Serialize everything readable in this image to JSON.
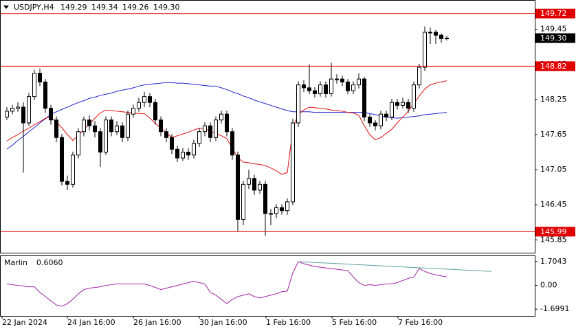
{
  "chart_data": {
    "type": "candlestick",
    "symbol": "USDJPY,H4",
    "last_labels": [
      "149.29",
      "149.34",
      "149.26",
      "149.30"
    ],
    "xticks": [
      "22 Jan 2024",
      "24 Jan 16:00",
      "26 Jan 16:00",
      "30 Jan 16:00",
      "1 Feb 16:00",
      "5 Feb 16:00",
      "7 Feb 16:00"
    ],
    "ylim": [
      145.63,
      149.94
    ],
    "yticks": [
      145.85,
      146.45,
      147.05,
      147.65,
      148.25,
      148.85,
      149.45
    ],
    "levels": [
      149.72,
      148.82,
      145.99
    ],
    "level_color": "#e00000",
    "candles": [
      [
        147.95,
        148.12,
        147.9,
        148.05
      ],
      [
        148.05,
        148.16,
        148.0,
        148.1
      ],
      [
        148.1,
        148.2,
        148.04,
        148.12
      ],
      [
        148.12,
        148.2,
        147.0,
        147.85
      ],
      [
        147.85,
        148.36,
        147.8,
        148.3
      ],
      [
        148.3,
        148.76,
        148.24,
        148.7
      ],
      [
        148.7,
        148.78,
        148.48,
        148.55
      ],
      [
        148.55,
        148.6,
        148.02,
        148.1
      ],
      [
        148.1,
        148.16,
        147.82,
        147.9
      ],
      [
        147.9,
        147.96,
        147.52,
        147.6
      ],
      [
        147.6,
        147.66,
        146.78,
        146.85
      ],
      [
        146.85,
        146.95,
        146.7,
        146.8
      ],
      [
        146.8,
        147.36,
        146.74,
        147.3
      ],
      [
        147.3,
        147.76,
        147.24,
        147.7
      ],
      [
        147.7,
        147.96,
        147.62,
        147.9
      ],
      [
        147.9,
        147.98,
        147.72,
        147.8
      ],
      [
        147.8,
        147.88,
        147.6,
        147.7
      ],
      [
        147.7,
        147.76,
        147.1,
        147.35
      ],
      [
        147.35,
        147.96,
        147.3,
        147.9
      ],
      [
        147.9,
        147.96,
        147.62,
        147.7
      ],
      [
        147.7,
        147.88,
        147.64,
        147.8
      ],
      [
        147.8,
        147.86,
        147.52,
        147.6
      ],
      [
        147.6,
        148.06,
        147.54,
        148.0
      ],
      [
        148.0,
        148.16,
        147.94,
        148.1
      ],
      [
        148.1,
        148.28,
        148.04,
        148.2
      ],
      [
        148.2,
        148.38,
        148.12,
        148.3
      ],
      [
        148.3,
        148.36,
        148.12,
        148.2
      ],
      [
        148.2,
        148.26,
        147.82,
        147.9
      ],
      [
        147.9,
        147.96,
        147.62,
        147.7
      ],
      [
        147.7,
        147.76,
        147.52,
        147.6
      ],
      [
        147.6,
        147.66,
        147.32,
        147.4
      ],
      [
        147.4,
        147.46,
        147.18,
        147.25
      ],
      [
        147.25,
        147.42,
        147.2,
        147.35
      ],
      [
        147.35,
        147.42,
        147.22,
        147.3
      ],
      [
        147.3,
        147.56,
        147.24,
        147.5
      ],
      [
        147.5,
        147.76,
        147.44,
        147.7
      ],
      [
        147.7,
        147.86,
        147.62,
        147.8
      ],
      [
        147.8,
        147.86,
        147.52,
        147.6
      ],
      [
        147.6,
        147.96,
        147.54,
        147.9
      ],
      [
        147.9,
        148.06,
        147.84,
        148.0
      ],
      [
        148.0,
        148.06,
        147.62,
        147.7
      ],
      [
        147.7,
        147.76,
        147.22,
        147.3
      ],
      [
        147.3,
        147.36,
        146.0,
        146.2
      ],
      [
        146.2,
        146.86,
        146.1,
        146.8
      ],
      [
        146.8,
        147.05,
        146.72,
        146.9
      ],
      [
        146.9,
        146.96,
        146.62,
        146.7
      ],
      [
        146.7,
        146.86,
        146.64,
        146.8
      ],
      [
        146.8,
        146.86,
        145.92,
        146.3
      ],
      [
        146.3,
        146.38,
        146.1,
        146.3
      ],
      [
        146.3,
        146.46,
        146.22,
        146.4
      ],
      [
        146.4,
        146.46,
        146.28,
        146.35
      ],
      [
        146.35,
        146.56,
        146.28,
        146.5
      ],
      [
        146.5,
        147.92,
        146.44,
        147.85
      ],
      [
        147.85,
        148.56,
        147.78,
        148.5
      ],
      [
        148.5,
        148.58,
        148.38,
        148.45
      ],
      [
        148.45,
        148.85,
        148.34,
        148.4
      ],
      [
        148.4,
        148.46,
        148.28,
        148.35
      ],
      [
        148.35,
        148.56,
        148.3,
        148.5
      ],
      [
        148.5,
        148.56,
        148.28,
        148.35
      ],
      [
        148.35,
        148.88,
        148.3,
        148.6
      ],
      [
        148.6,
        148.68,
        148.52,
        148.6
      ],
      [
        148.6,
        148.66,
        148.48,
        148.55
      ],
      [
        148.55,
        148.6,
        148.34,
        148.4
      ],
      [
        148.4,
        148.56,
        148.34,
        148.5
      ],
      [
        148.5,
        148.7,
        148.44,
        148.6
      ],
      [
        148.6,
        148.64,
        147.88,
        147.95
      ],
      [
        147.95,
        148.0,
        147.78,
        147.85
      ],
      [
        147.85,
        147.9,
        147.72,
        147.8
      ],
      [
        147.8,
        148.06,
        147.74,
        148.0
      ],
      [
        148.0,
        148.06,
        147.88,
        147.95
      ],
      [
        147.95,
        148.26,
        147.9,
        148.2
      ],
      [
        148.2,
        148.26,
        148.08,
        148.15
      ],
      [
        148.15,
        148.28,
        148.1,
        148.2
      ],
      [
        148.2,
        148.26,
        148.02,
        148.1
      ],
      [
        148.1,
        148.56,
        148.04,
        148.5
      ],
      [
        148.5,
        148.86,
        148.44,
        148.8
      ],
      [
        148.8,
        149.5,
        148.74,
        149.4
      ],
      [
        149.4,
        149.48,
        149.2,
        149.4
      ],
      [
        149.4,
        149.44,
        149.2,
        149.35
      ],
      [
        149.35,
        149.38,
        149.22,
        149.29
      ],
      [
        149.29,
        149.34,
        149.26,
        149.3
      ]
    ],
    "series": [
      {
        "color": "#1f1fd0",
        "values": [
          147.4,
          147.47,
          147.55,
          147.62,
          147.7,
          147.77,
          147.85,
          147.92,
          148.0,
          148.04,
          148.08,
          148.12,
          148.16,
          148.2,
          148.23,
          148.27,
          148.29,
          148.32,
          148.34,
          148.36,
          148.39,
          148.41,
          148.43,
          148.45,
          148.48,
          148.5,
          148.51,
          148.52,
          148.53,
          148.54,
          148.54,
          148.53,
          148.53,
          148.52,
          148.51,
          148.5,
          148.49,
          148.48,
          148.48,
          148.45,
          148.42,
          148.38,
          148.35,
          148.31,
          148.28,
          148.24,
          148.21,
          148.18,
          148.15,
          148.12,
          148.09,
          148.06,
          148.04,
          148.04,
          148.04,
          148.04,
          148.03,
          148.03,
          148.03,
          148.03,
          148.03,
          148.03,
          148.03,
          148.03,
          148.03,
          148.03,
          148.01,
          147.99,
          147.97,
          147.95,
          147.94,
          147.93,
          147.94,
          147.95,
          147.96,
          147.97,
          147.99,
          148.0,
          148.01,
          148.02,
          148.03
        ]
      },
      {
        "color": "#e01010",
        "values": [
          147.54,
          147.6,
          147.65,
          147.71,
          147.76,
          147.82,
          147.87,
          147.93,
          147.95,
          147.86,
          147.77,
          147.65,
          147.55,
          147.64,
          147.74,
          147.83,
          147.93,
          148.02,
          148.07,
          148.06,
          148.05,
          148.04,
          148.03,
          148.02,
          148.01,
          148.01,
          147.93,
          147.84,
          147.76,
          147.68,
          147.6,
          147.63,
          147.66,
          147.69,
          147.73,
          147.76,
          147.75,
          147.71,
          147.67,
          147.63,
          147.58,
          147.42,
          147.25,
          147.18,
          147.17,
          147.15,
          147.14,
          147.12,
          147.08,
          147.03,
          146.97,
          147.0,
          147.75,
          148.0,
          148.07,
          148.12,
          148.11,
          148.1,
          148.09,
          148.07,
          148.06,
          148.05,
          148.03,
          148.02,
          147.98,
          147.8,
          147.65,
          147.56,
          147.6,
          147.67,
          147.74,
          147.85,
          147.95,
          148.05,
          148.18,
          148.31,
          148.43,
          148.5,
          148.53,
          148.55,
          148.57
        ]
      }
    ],
    "indicator": {
      "name": "Marlin",
      "last_label": "0.6060",
      "color": "#a020a0",
      "ylim": [
        -2.18,
        2.09
      ],
      "yticks": [
        -1.6991,
        {
          "value": 0,
          "label": "0.00"
        },
        1.7043
      ],
      "values": [
        0.1,
        0.05,
        0.0,
        -0.05,
        -0.1,
        -0.1,
        -0.5,
        -0.8,
        -1.1,
        -1.4,
        -1.5,
        -1.3,
        -1.0,
        -0.6,
        -0.3,
        -0.2,
        -0.15,
        -0.1,
        0.0,
        0.05,
        0.1,
        0.1,
        0.1,
        0.1,
        0.1,
        0.1,
        0.0,
        -0.15,
        -0.3,
        -0.2,
        -0.1,
        0.0,
        0.1,
        0.2,
        0.3,
        0.2,
        0.1,
        -0.5,
        -0.7,
        -1.0,
        -1.3,
        -1.0,
        -0.8,
        -0.7,
        -0.6,
        -0.8,
        -0.9,
        -0.8,
        -0.7,
        -0.6,
        -0.45,
        -0.4,
        0.9,
        1.7,
        1.55,
        1.45,
        1.35,
        1.3,
        1.25,
        1.2,
        1.15,
        1.1,
        1.05,
        0.6,
        0.2,
        0.0,
        0.05,
        0.0,
        0.05,
        0.1,
        0.1,
        0.2,
        0.35,
        0.5,
        0.6,
        1.2,
        1.0,
        0.85,
        0.75,
        0.68,
        0.606
      ],
      "trendline": {
        "color": "#5fa0a0",
        "values": [
          1.7,
          1.0
        ]
      }
    }
  }
}
